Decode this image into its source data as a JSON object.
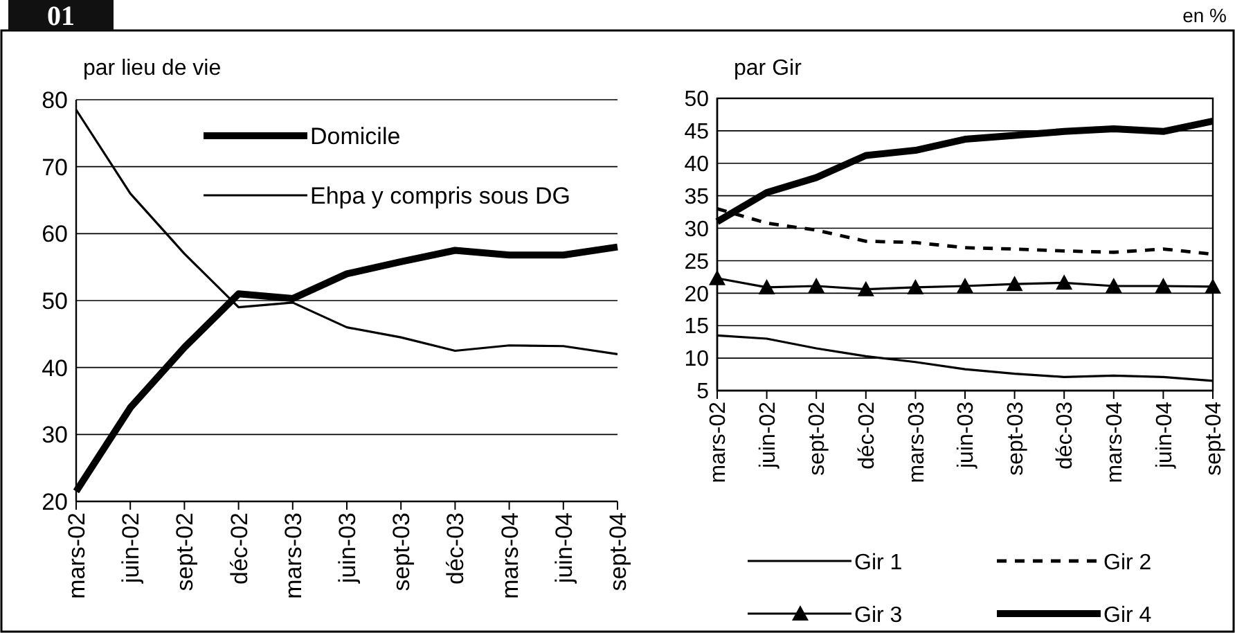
{
  "chart_data": [
    {
      "type": "line",
      "title": "par lieu de vie",
      "annotations": [
        "01"
      ],
      "categories": [
        "mars-02",
        "juin-02",
        "sept-02",
        "déc-02",
        "mars-03",
        "juin-03",
        "sept-03",
        "déc-03",
        "mars-04",
        "juin-04",
        "sept-04"
      ],
      "series": [
        {
          "name": "Domicile",
          "color": "#000000",
          "values": [
            21.5,
            34,
            43,
            51,
            50.3,
            54,
            55.8,
            57.5,
            56.8,
            56.8,
            58
          ]
        },
        {
          "name": "Ehpa y compris sous DG",
          "color": "#000000",
          "values": [
            78.5,
            66,
            57,
            49,
            49.7,
            46,
            44.5,
            42.5,
            43.3,
            43.2,
            42
          ]
        }
      ],
      "ylim": [
        20,
        80
      ],
      "yticks": [
        20,
        30,
        40,
        50,
        60,
        70,
        80
      ],
      "grid": "y",
      "legend": "top",
      "marker": "none",
      "line_style": "solid"
    },
    {
      "type": "line",
      "title": "par Gir",
      "annotations": [
        "en %"
      ],
      "categories": [
        "mars-02",
        "juin-02",
        "sept-02",
        "déc-02",
        "mars-03",
        "juin-03",
        "sept-03",
        "déc-03",
        "mars-04",
        "juin-04",
        "sept-04"
      ],
      "series": [
        {
          "name": "Gir 1",
          "color": "#000000",
          "values": [
            13.5,
            13,
            11.5,
            10.3,
            9.4,
            8.3,
            7.6,
            7.1,
            7.3,
            7.1,
            6.5
          ]
        },
        {
          "name": "Gir 2",
          "color": "#000000",
          "line_style": "dashed",
          "values": [
            33,
            30.8,
            29.7,
            28,
            27.8,
            27,
            26.8,
            26.5,
            26.3,
            26.8,
            26
          ]
        },
        {
          "name": "Gir 3",
          "color": "#000000",
          "marker": "triangle",
          "values": [
            22.3,
            20.9,
            21.1,
            20.6,
            20.9,
            21.1,
            21.4,
            21.6,
            21.1,
            21.1,
            21
          ]
        },
        {
          "name": "Gir 4",
          "color": "#000000",
          "values": [
            31,
            35.5,
            37.8,
            41.2,
            42,
            43.7,
            44.3,
            44.9,
            45.3,
            44.9,
            46.5
          ]
        }
      ],
      "ylim": [
        5,
        50
      ],
      "yticks": [
        5,
        10,
        15,
        20,
        25,
        30,
        35,
        40,
        45,
        50
      ],
      "grid": "y",
      "legend": "bottom",
      "marker": "none",
      "line_style": "solid"
    }
  ]
}
